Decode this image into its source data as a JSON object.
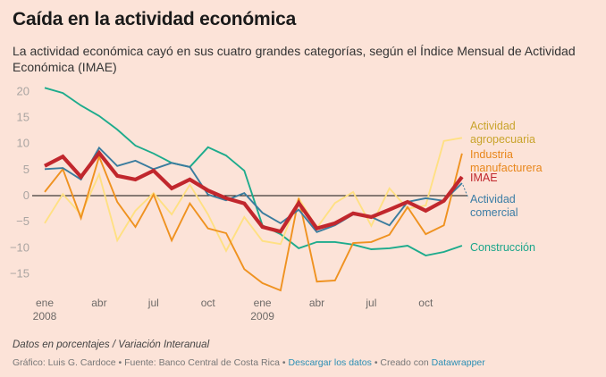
{
  "header": {
    "title": "Caída en la actividad económica",
    "subtitle": "La actividad económica cayó en sus cuatro grandes categorías, según el Índice Mensual de Actividad Económica (IMAE)"
  },
  "footer": {
    "notes": "Datos en porcentajes / Variación Interanual",
    "credit": "Gráfico: Luis G. Cardoce",
    "separator": " • ",
    "source": "Fuente: Banco Central de Costa Rica",
    "download_link": "Descargar los datos",
    "made_with": "Creado con",
    "datawrapper_link": "Datawrapper"
  },
  "chart_data": {
    "type": "line",
    "title": "Caída en la actividad económica",
    "xlabel": "",
    "ylabel": "",
    "ylim": [
      -18,
      21
    ],
    "yticks": [
      20,
      15,
      10,
      5,
      0,
      -5,
      -10,
      -15
    ],
    "ytick_labels": [
      "20",
      "15",
      "10",
      "5",
      "0",
      "−5",
      "−10",
      "−15"
    ],
    "x": [
      "ene 2008",
      "feb 2008",
      "mar 2008",
      "abr 2008",
      "may 2008",
      "jun 2008",
      "jul 2008",
      "ago 2008",
      "sep 2008",
      "oct 2008",
      "nov 2008",
      "dic 2008",
      "ene 2009",
      "feb 2009",
      "mar 2009",
      "abr 2009",
      "may 2009",
      "jun 2009",
      "jul 2009",
      "ago 2009",
      "sep 2009",
      "oct 2009",
      "nov 2009",
      "dic 2009"
    ],
    "xticks": [
      {
        "index": 0,
        "label": "ene",
        "sublabel": "2008"
      },
      {
        "index": 3,
        "label": "abr",
        "sublabel": ""
      },
      {
        "index": 6,
        "label": "jul",
        "sublabel": ""
      },
      {
        "index": 9,
        "label": "oct",
        "sublabel": ""
      },
      {
        "index": 12,
        "label": "ene",
        "sublabel": "2009"
      },
      {
        "index": 15,
        "label": "abr",
        "sublabel": ""
      },
      {
        "index": 18,
        "label": "jul",
        "sublabel": ""
      },
      {
        "index": 21,
        "label": "oct",
        "sublabel": ""
      }
    ],
    "grid": false,
    "zero_line": true,
    "legend": "direct labels at right end of lines",
    "series": [
      {
        "name": "Construcción",
        "label_lines": [
          "Construcción"
        ],
        "color": "#1dab8c",
        "label_color": "#1aa58a",
        "width": "normal",
        "values": [
          20.7,
          19.7,
          17.3,
          15.3,
          12.7,
          9.6,
          8.1,
          6.3,
          5.5,
          9.3,
          7.7,
          4.8,
          -5.7,
          -7.4,
          -10.1,
          -8.9,
          -8.9,
          -9.4,
          -10.3,
          -10.1,
          -9.6,
          -11.5,
          -10.8,
          -9.6
        ]
      },
      {
        "name": "Actividad agropecuaria",
        "label_lines": [
          "Actividad",
          "agropecuaria"
        ],
        "color": "#ffe083",
        "label_color": "#c9a42c",
        "width": "normal",
        "values": [
          -5.3,
          0.3,
          -3.6,
          4.1,
          -8.6,
          -2.9,
          0.5,
          -3.6,
          2.1,
          -3.6,
          -10.6,
          -4.1,
          -8.7,
          -9.3,
          -0.5,
          -6.2,
          -1.4,
          0.7,
          -5.8,
          1.4,
          -2.5,
          -1.9,
          10.5,
          11.1
        ]
      },
      {
        "name": "Industria manufacturera",
        "label_lines": [
          "Industria",
          "manufacturera"
        ],
        "color": "#ef9220",
        "label_color": "#e8861a",
        "width": "normal",
        "values": [
          0.7,
          5.1,
          -4.3,
          7.5,
          -1.2,
          -6.0,
          0.2,
          -8.6,
          -1.5,
          -6.3,
          -7.2,
          -14.1,
          -16.8,
          -18.2,
          -0.5,
          -16.5,
          -16.3,
          -9.1,
          -8.9,
          -7.5,
          -2.2,
          -7.4,
          -5.7,
          8.1
        ]
      },
      {
        "name": "Actividad comercial",
        "label_lines": [
          "Actividad",
          "comercial"
        ],
        "color": "#3a7c9e",
        "label_color": "#3a7ca5",
        "width": "normal",
        "values": [
          5.1,
          5.3,
          3.1,
          9.2,
          5.7,
          6.7,
          5.1,
          6.3,
          5.5,
          0.2,
          -0.9,
          0.5,
          -3.3,
          -5.3,
          -2.7,
          -7.0,
          -5.7,
          -3.6,
          -4.1,
          -5.7,
          -1.2,
          -0.5,
          -1.0,
          2.4
        ]
      },
      {
        "name": "IMAE",
        "label_lines": [
          "IMAE"
        ],
        "color": "#c1272d",
        "label_color": "#c0272d",
        "width": "thick",
        "values": [
          5.7,
          7.5,
          3.6,
          8.2,
          3.8,
          3.1,
          4.8,
          1.4,
          3.1,
          1.0,
          -0.5,
          -1.5,
          -6.0,
          -6.9,
          -1.4,
          -6.3,
          -5.3,
          -3.4,
          -4.1,
          -2.7,
          -1.2,
          -2.9,
          -1.0,
          3.6
        ]
      }
    ]
  }
}
